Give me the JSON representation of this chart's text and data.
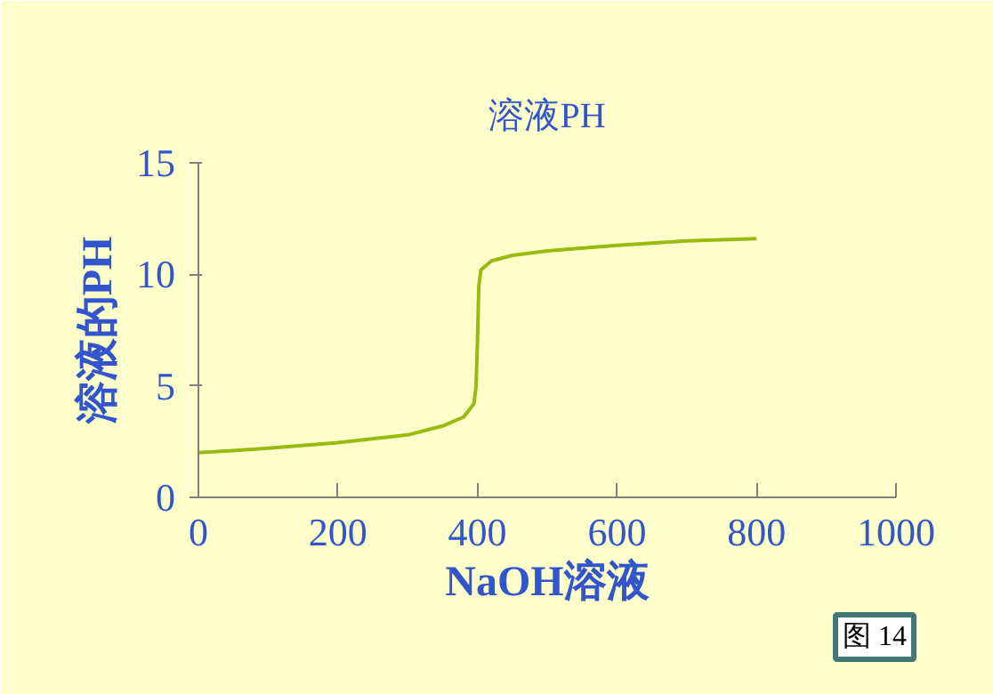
{
  "chart_data": {
    "type": "line",
    "title": "溶液PH",
    "xlabel": "NaOH溶液",
    "ylabel": "溶液的PH",
    "x": [
      0,
      100,
      200,
      300,
      350,
      380,
      395,
      398,
      400,
      402,
      405,
      420,
      450,
      500,
      600,
      700,
      800
    ],
    "series": [
      {
        "color": "#99bb11",
        "values": [
          2.0,
          2.2,
          2.45,
          2.8,
          3.2,
          3.6,
          4.2,
          5.0,
          7.0,
          9.5,
          10.2,
          10.6,
          10.85,
          11.05,
          11.3,
          11.5,
          11.6
        ]
      }
    ],
    "xlim": [
      0,
      1000
    ],
    "xticks": [
      0,
      200,
      400,
      600,
      800,
      1000
    ],
    "ylim": [
      0,
      15
    ],
    "yticks": [
      0,
      5,
      10,
      15
    ],
    "grid": false,
    "marker": "none",
    "line_style": "solid",
    "annotations": [
      "图 14"
    ]
  }
}
